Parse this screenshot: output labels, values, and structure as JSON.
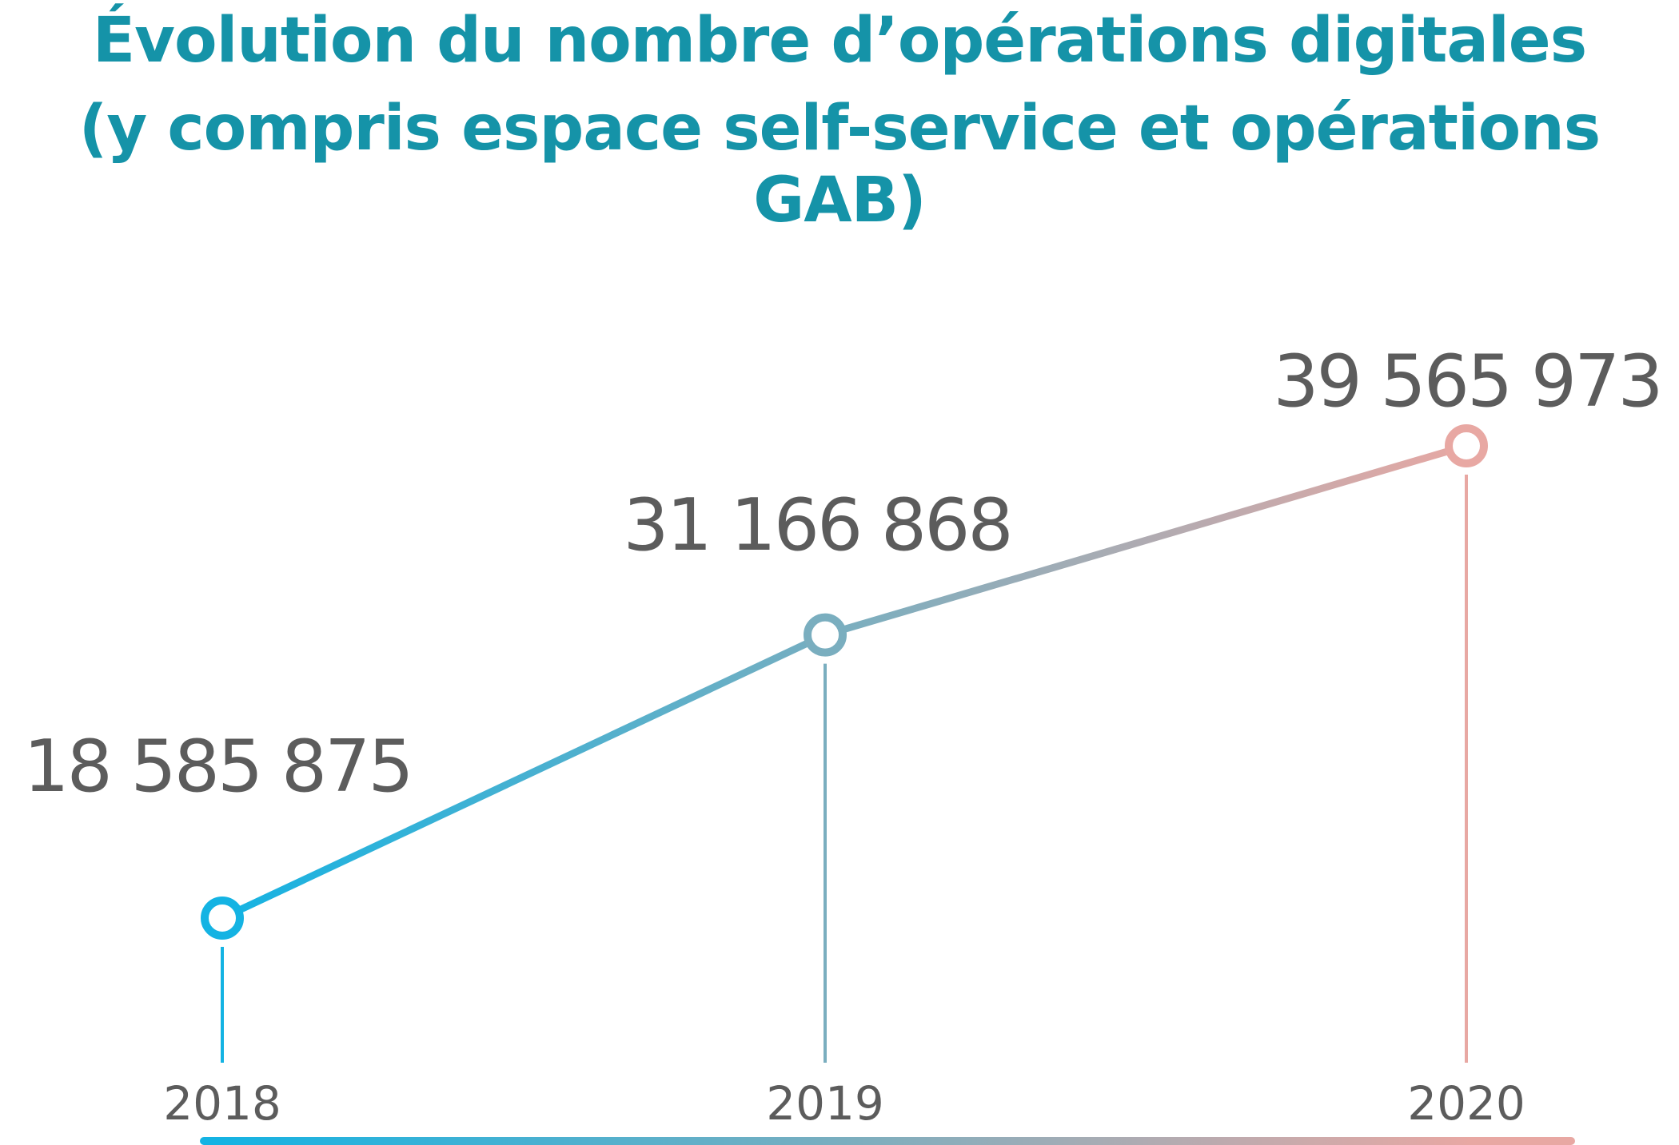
{
  "chart_data": {
    "type": "line",
    "title": "Évolution du nombre d’opérations digitales",
    "subtitle": "(y compris espace self-service et opérations GAB)",
    "categories": [
      "2018",
      "2019",
      "2020"
    ],
    "values": [
      18585875,
      31166868,
      39565973
    ],
    "value_labels": [
      "18 585 875",
      "31 166 868",
      "39 565 973"
    ],
    "xlabel": "",
    "ylabel": "",
    "grid": false,
    "colors": {
      "start": "#14b3e3",
      "mid": "#7aaebf",
      "end": "#e8a8a3",
      "title": "#1593a8",
      "text": "#5c5c5c"
    }
  }
}
